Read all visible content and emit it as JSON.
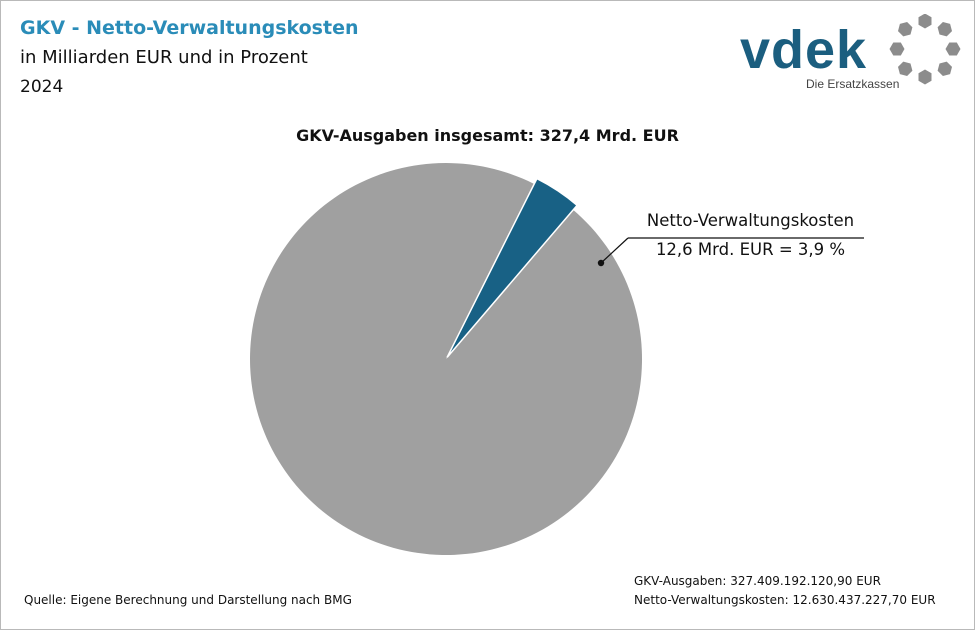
{
  "header": {
    "title": "GKV - Netto-Verwaltungskosten",
    "subtitle": "in Milliarden EUR und in Prozent",
    "year": "2024"
  },
  "logo": {
    "text": "vdek",
    "tagline": "Die Ersatzkassen",
    "brand_color": "#1b5e7f",
    "ring_color": "#8c8c8c"
  },
  "chart_data": {
    "type": "pie",
    "title": "GKV-Ausgaben insgesamt: 327,4 Mrd. EUR",
    "slices": [
      {
        "name": "",
        "value": 314.8,
        "percent": 96.1,
        "color": "#a0a0a0"
      },
      {
        "name": "Netto-Verwaltungskosten",
        "value": 12.6,
        "percent": 3.9,
        "color": "#186185",
        "label_value": "12,6  Mrd. EUR = 3,9  %"
      }
    ],
    "start_angle_deg": 65
  },
  "footer": {
    "source": "Quelle: Eigene Berechnung und Darstellung nach BMG",
    "note1": "GKV-Ausgaben: 327.409.192.120,90  EUR",
    "note2": "Netto-Verwaltungskosten: 12.630.437.227,70  EUR"
  }
}
